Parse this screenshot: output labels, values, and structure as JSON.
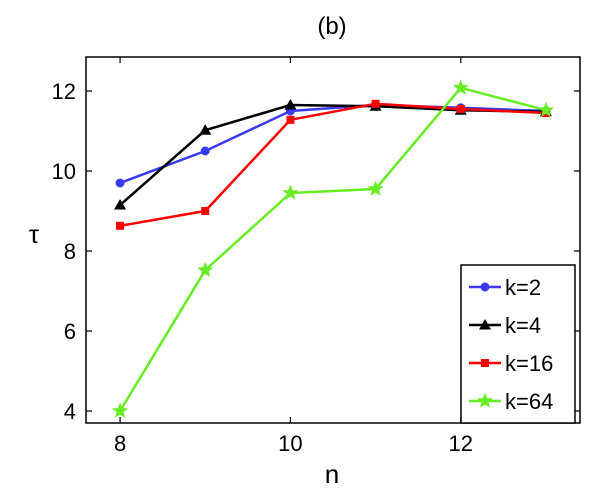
{
  "chart_data": {
    "type": "line",
    "title": "(b)",
    "xlabel": "n",
    "ylabel": "τ",
    "xlim": [
      7.6,
      13.4
    ],
    "ylim": [
      3.7,
      12.85
    ],
    "xticks": [
      8,
      10,
      12
    ],
    "yticks": [
      4,
      6,
      8,
      10,
      12
    ],
    "grid": false,
    "legend": "bottom-right",
    "x": [
      8,
      9,
      10,
      11,
      12,
      13
    ],
    "series": [
      {
        "name": "k=2",
        "color": "#3a3af0",
        "marker": "circle",
        "values": [
          9.7,
          10.5,
          11.5,
          11.65,
          11.58,
          11.5
        ]
      },
      {
        "name": "k=4",
        "color": "#000000",
        "marker": "triangle",
        "values": [
          9.15,
          11.02,
          11.65,
          11.62,
          11.52,
          11.48
        ]
      },
      {
        "name": "k=16",
        "color": "#ff0000",
        "marker": "square",
        "values": [
          8.63,
          9.0,
          11.28,
          11.68,
          11.55,
          11.45
        ]
      },
      {
        "name": "k=64",
        "color": "#66ee22",
        "marker": "star",
        "values": [
          4.0,
          7.52,
          9.45,
          9.55,
          12.08,
          11.52
        ]
      }
    ]
  }
}
